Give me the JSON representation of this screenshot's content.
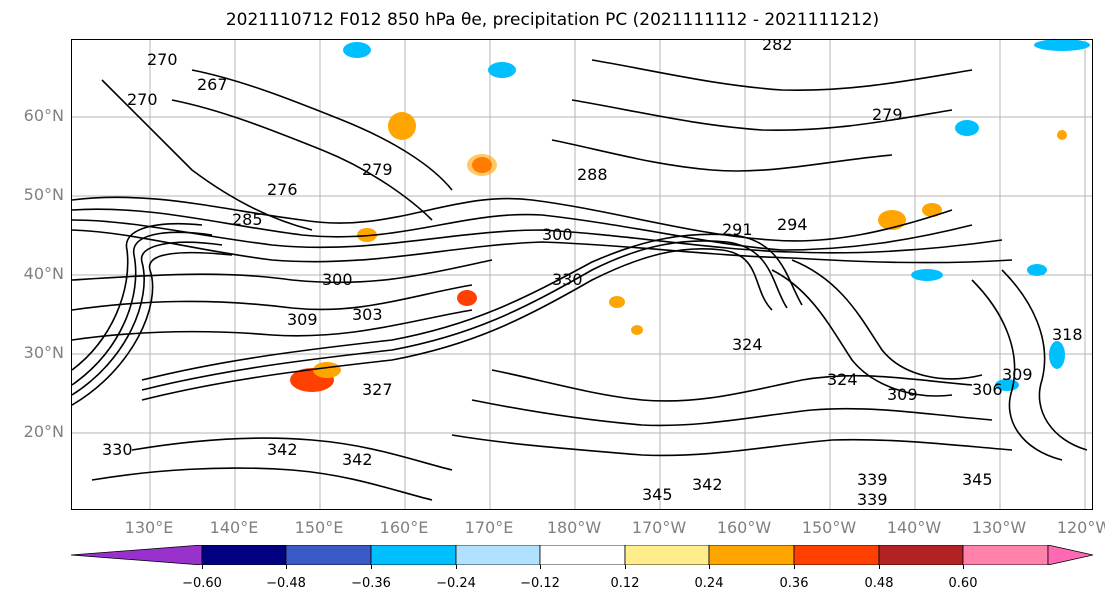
{
  "title": "2021110712 F012 850 hPa θe, precipitation PC (2021111112 - 2021111212)",
  "map": {
    "lat_labels": [
      "60°N",
      "50°N",
      "40°N",
      "30°N",
      "20°N"
    ],
    "lon_labels": [
      "130°E",
      "140°E",
      "150°E",
      "160°E",
      "170°E",
      "180°W",
      "170°W",
      "160°W",
      "150°W",
      "140°W",
      "130°W",
      "120°W"
    ],
    "contour_labels": [
      "270",
      "267",
      "270",
      "279",
      "276",
      "279",
      "282",
      "288",
      "285",
      "300",
      "300",
      "291",
      "294",
      "309",
      "303",
      "330",
      "324",
      "327",
      "324",
      "309",
      "306",
      "309",
      "318",
      "342",
      "342",
      "339",
      "339",
      "345",
      "342",
      "345",
      "330"
    ]
  },
  "colorbar": {
    "ticks": [
      "−0.60",
      "−0.48",
      "−0.36",
      "−0.24",
      "−0.12",
      "0.12",
      "0.24",
      "0.36",
      "0.48",
      "0.60"
    ],
    "colors": [
      "#9932CC",
      "#000080",
      "#3A5BC7",
      "#00BFFF",
      "#B0E2FF",
      "#FFFFFF",
      "#FFEC8B",
      "#FFA500",
      "#FF4000",
      "#B22222",
      "#FF82AB",
      "#FF69B4"
    ]
  }
}
